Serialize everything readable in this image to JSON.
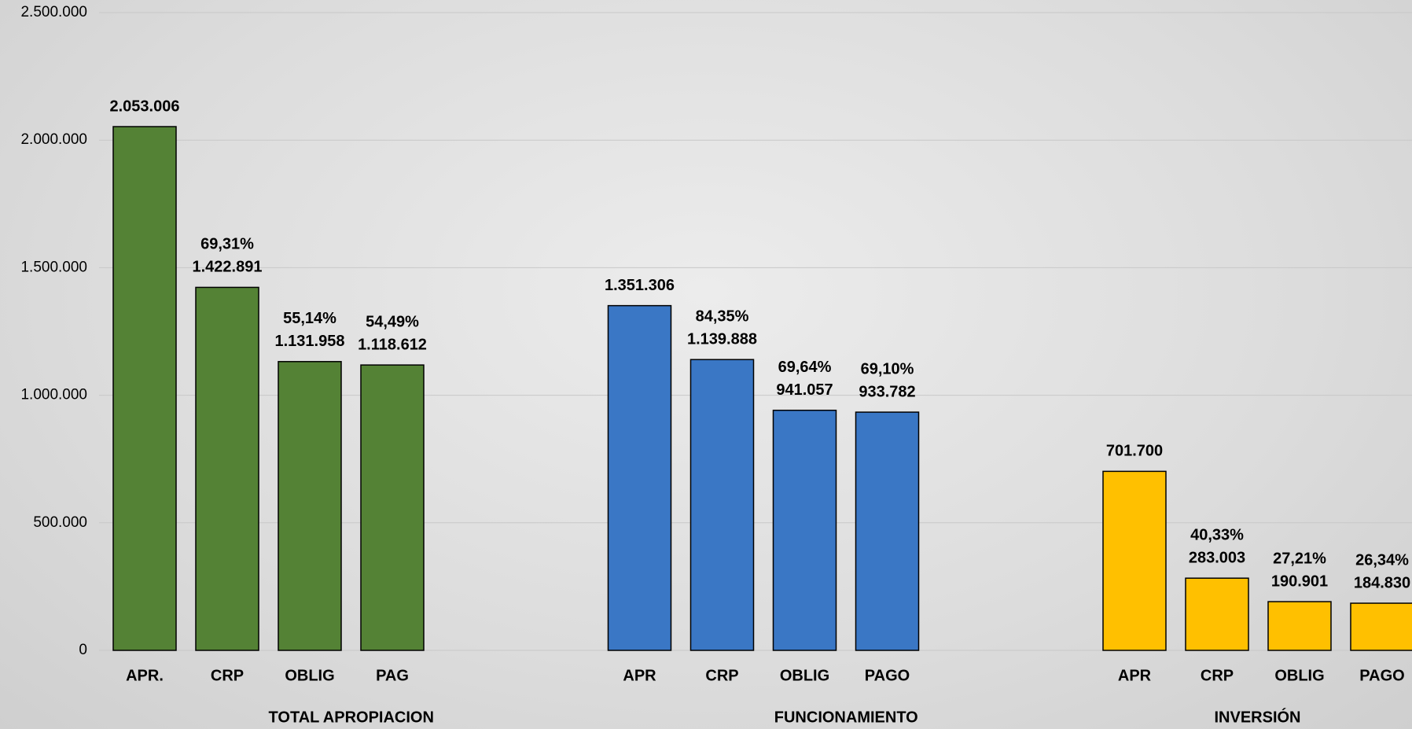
{
  "chart_data": {
    "type": "grouped-bar",
    "ylim": [
      0,
      2500000
    ],
    "yticks": [
      0,
      {
        "value": 500000,
        "label": "500.000"
      },
      {
        "value": 1000000,
        "label": "1.000.000"
      },
      {
        "value": 1500000,
        "label": "1.500.000"
      },
      {
        "value": 2000000,
        "label": "2.000.000"
      },
      {
        "value": 2500000,
        "label": "2.500.000"
      }
    ],
    "grid": true,
    "groups": [
      {
        "name": "TOTAL APROPIACION",
        "color": "#548235",
        "categories": [
          "APR.",
          "CRP",
          "OBLIG",
          "PAG"
        ],
        "values": [
          2053006,
          1422891,
          1131958,
          1118612
        ],
        "value_labels": [
          "2.053.006",
          "1.422.891",
          "1.131.958",
          "1.118.612"
        ],
        "percent_labels": [
          null,
          "69,31%",
          "55,14%",
          "54,49%"
        ]
      },
      {
        "name": "FUNCIONAMIENTO",
        "color": "#3a77c5",
        "categories": [
          "APR",
          "CRP",
          "OBLIG",
          "PAGO"
        ],
        "values": [
          1351306,
          1139888,
          941057,
          933782
        ],
        "value_labels": [
          "1.351.306",
          "1.139.888",
          "941.057",
          "933.782"
        ],
        "percent_labels": [
          null,
          "84,35%",
          "69,64%",
          "69,10%"
        ]
      },
      {
        "name": "INVERSIÓN",
        "color": "#ffc000",
        "categories": [
          "APR",
          "CRP",
          "OBLIG",
          "PAGO"
        ],
        "values": [
          701700,
          283003,
          190901,
          184830
        ],
        "value_labels": [
          "701.700",
          "283.003",
          "190.901",
          "184.830"
        ],
        "percent_labels": [
          null,
          "40,33%",
          "27,21%",
          "26,34%"
        ]
      }
    ]
  }
}
